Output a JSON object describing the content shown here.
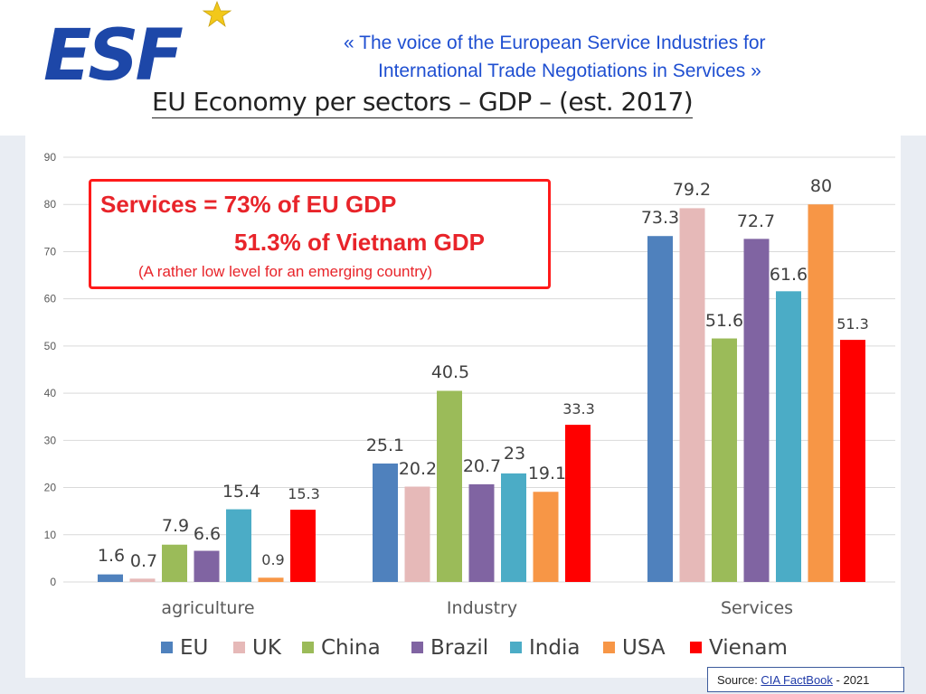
{
  "header": {
    "tagline_line1": "« The voice of the European Service Industries for",
    "tagline_line2": "International Trade Negotiations in Services »",
    "title": "EU Economy per sectors – GDP – (est. 2017)",
    "logo_text": "ESF",
    "logo_icon": "star-icon"
  },
  "callout": {
    "line1": "Services = 73% of EU GDP",
    "line2": "51.3% of Vietnam GDP",
    "line3": "(A rather low level for an emerging country)"
  },
  "source": {
    "prefix": "Source: ",
    "link": "CIA FactBook",
    "suffix": " - 2021"
  },
  "chart_data": {
    "type": "bar",
    "categories": [
      "agriculture",
      "Industry",
      "Services"
    ],
    "series": [
      {
        "name": "EU",
        "color": "#4f81bd",
        "values": [
          1.6,
          25.1,
          73.3
        ],
        "labels": [
          "1.6",
          "25.1",
          "73.3"
        ]
      },
      {
        "name": "UK",
        "color": "#e6b9b8",
        "values": [
          0.7,
          20.2,
          79.2
        ],
        "labels": [
          "0.7",
          "20.2",
          "79.2"
        ]
      },
      {
        "name": "China",
        "color": "#9bbb59",
        "values": [
          7.9,
          40.5,
          51.6
        ],
        "labels": [
          "7.9",
          "40.5",
          "51.6"
        ]
      },
      {
        "name": "Brazil",
        "color": "#8064a2",
        "values": [
          6.6,
          20.7,
          72.7
        ],
        "labels": [
          "6.6",
          "20.7",
          "72.7"
        ]
      },
      {
        "name": "India",
        "color": "#4bacc6",
        "values": [
          15.4,
          23,
          61.6
        ],
        "labels": [
          "15.4",
          "23",
          "61.6"
        ]
      },
      {
        "name": "USA",
        "color": "#f79646",
        "values": [
          0.9,
          19.1,
          80
        ],
        "labels": [
          "0.9",
          "19.1",
          "80"
        ]
      },
      {
        "name": "Vienam",
        "color": "#ff0000",
        "values": [
          15.3,
          33.3,
          51.3
        ],
        "labels": [
          "15.3",
          "33.3",
          "51.3"
        ]
      }
    ],
    "ylim": [
      0,
      90
    ],
    "yticks": [
      "0",
      "10",
      "20",
      "30",
      "40",
      "50",
      "60",
      "70",
      "80",
      "90"
    ],
    "grid": true,
    "legend": "bottom"
  }
}
